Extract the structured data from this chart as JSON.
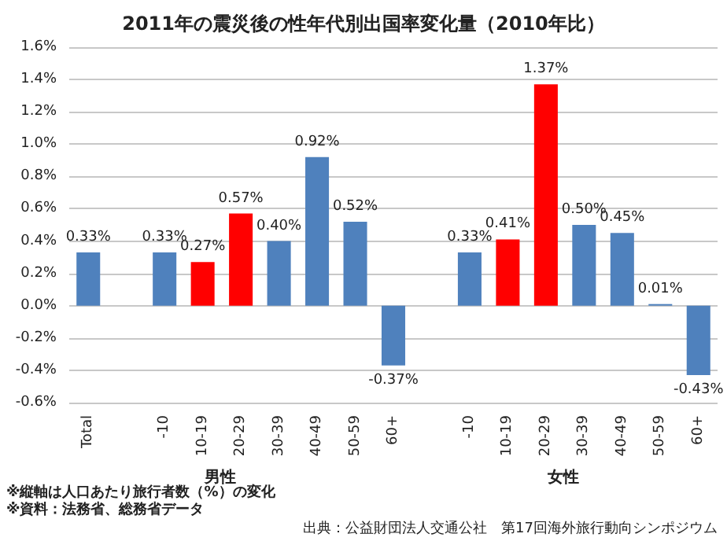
{
  "chart_data": {
    "type": "bar",
    "title": "2011年の震災後の性年代別出国率変化量（2010年比）",
    "categories": [
      "Total",
      null,
      "-10",
      "10-19",
      "20-29",
      "30-39",
      "40-49",
      "50-59",
      "60+",
      null,
      "-10",
      "10-19",
      "20-29",
      "30-39",
      "40-49",
      "50-59",
      "60+"
    ],
    "values": [
      0.33,
      null,
      0.33,
      0.27,
      0.57,
      0.4,
      0.92,
      0.52,
      -0.37,
      null,
      0.33,
      0.41,
      1.37,
      0.5,
      0.45,
      0.01,
      -0.43
    ],
    "colors": [
      "#4f81bd",
      null,
      "#4f81bd",
      "#ff0000",
      "#ff0000",
      "#4f81bd",
      "#4f81bd",
      "#4f81bd",
      "#4f81bd",
      null,
      "#4f81bd",
      "#ff0000",
      "#ff0000",
      "#4f81bd",
      "#4f81bd",
      "#4f81bd",
      "#4f81bd"
    ],
    "value_labels": [
      "0.33%",
      null,
      "0.33%",
      "0.27%",
      "0.57%",
      "0.40%",
      "0.92%",
      "0.52%",
      "-0.37%",
      null,
      "0.33%",
      "0.41%",
      "1.37%",
      "0.50%",
      "0.45%",
      "0.01%",
      "-0.43%"
    ],
    "ylim": [
      -0.6,
      1.6
    ],
    "yticks": [
      {
        "value": -0.6,
        "label": "-0.6%"
      },
      {
        "value": -0.4,
        "label": "-0.4%"
      },
      {
        "value": -0.2,
        "label": "-0.2%"
      },
      {
        "value": 0,
        "label": "0.0%"
      },
      {
        "value": 0.2,
        "label": "0.2%"
      },
      {
        "value": 0.4,
        "label": "0.4%"
      },
      {
        "value": 0.6,
        "label": "0.6%"
      },
      {
        "value": 0.8,
        "label": "0.8%"
      },
      {
        "value": 1.0,
        "label": "1.0%"
      },
      {
        "value": 1.2,
        "label": "1.2%"
      },
      {
        "value": 1.4,
        "label": "1.4%"
      },
      {
        "value": 1.6,
        "label": "1.6%"
      }
    ],
    "grid": "y",
    "annotations": [
      "男性",
      "女性",
      "※縦軸は人口あたり旅行者数（%）の変化",
      "※資料：法務省、総務省データ",
      "出典：公益財団法人交通公社　第17回海外旅行動向シンポジウム"
    ]
  }
}
